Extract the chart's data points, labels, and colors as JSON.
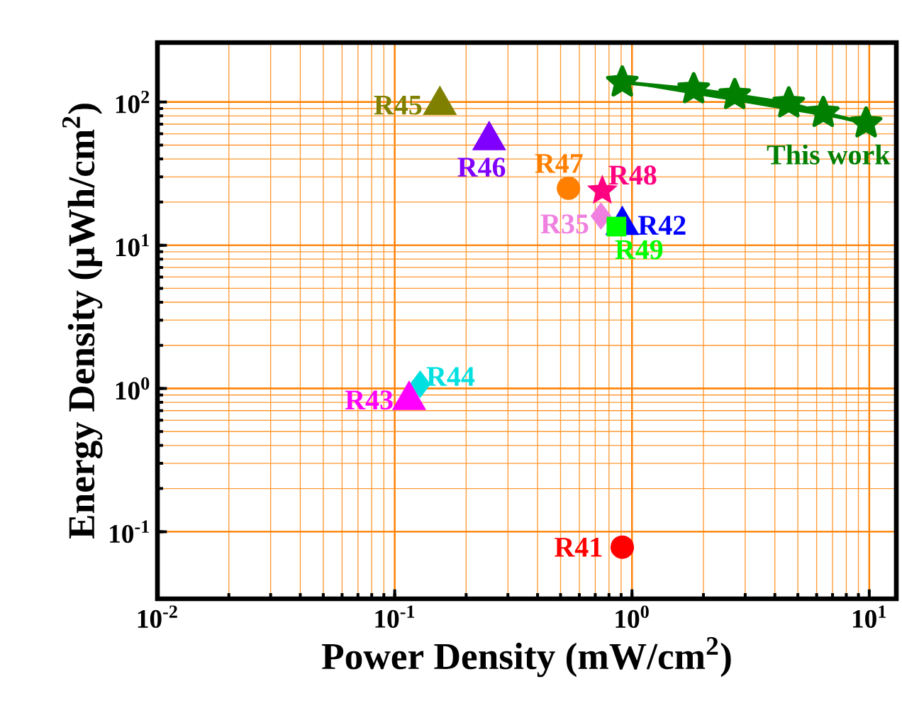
{
  "chart_data": {
    "type": "scatter",
    "xlabel": "Power Density (mW/cm$^{2}$)",
    "ylabel": "Energy Density (μWh/cm$^{2}$)",
    "log": "xy",
    "grid": true,
    "xlim": [
      0.01,
      13
    ],
    "ylim": [
      0.034,
      260
    ],
    "xticks": [
      {
        "value": 0.01,
        "label": "10$^{-2}$"
      },
      {
        "value": 0.1,
        "label": "10$^{-1}$"
      },
      {
        "value": 1,
        "label": "10$^{0}$"
      },
      {
        "value": 10,
        "label": "10$^{1}$"
      }
    ],
    "yticks": [
      {
        "value": 0.1,
        "label": "10$^{-1}$"
      },
      {
        "value": 1,
        "label": "10$^{0}$"
      },
      {
        "value": 10,
        "label": "10$^{1}$"
      },
      {
        "value": 100,
        "label": "10$^{2}$"
      }
    ],
    "series": [
      {
        "name": "This work",
        "type": "line",
        "marker": "star",
        "color": "#007f00",
        "x": [
          0.91,
          1.82,
          2.71,
          4.58,
          6.4,
          9.7
        ],
        "values": [
          137,
          123,
          112,
          98,
          84,
          71
        ]
      },
      {
        "name": "R45",
        "marker": "triangle",
        "color": "#808000",
        "x": [
          0.155
        ],
        "values": [
          95
        ]
      },
      {
        "name": "R46",
        "marker": "triangle",
        "color": "#8000ff",
        "x": [
          0.25
        ],
        "values": [
          54
        ]
      },
      {
        "name": "R47",
        "marker": "circle",
        "color": "#ff8000",
        "x": [
          0.54
        ],
        "values": [
          25
        ]
      },
      {
        "name": "R48",
        "marker": "star",
        "color": "#ff0080",
        "x": [
          0.75
        ],
        "values": [
          24
        ]
      },
      {
        "name": "R35",
        "marker": "diamond",
        "color": "#f080e0",
        "x": [
          0.74
        ],
        "values": [
          16
        ]
      },
      {
        "name": "R42",
        "marker": "triangle",
        "color": "#0000ff",
        "x": [
          0.91
        ],
        "values": [
          13.8
        ]
      },
      {
        "name": "R49",
        "marker": "square",
        "color": "#00ff00",
        "x": [
          0.86
        ],
        "values": [
          13.5
        ]
      },
      {
        "name": "R44",
        "marker": "diamond",
        "color": "#00e0e0",
        "x": [
          0.128
        ],
        "values": [
          1.07
        ]
      },
      {
        "name": "R43",
        "marker": "triangle",
        "color": "#ff00ff",
        "x": [
          0.115
        ],
        "values": [
          0.83
        ]
      },
      {
        "name": "R41",
        "marker": "circle",
        "color": "#ff0000",
        "x": [
          0.91
        ],
        "values": [
          0.078
        ]
      }
    ]
  }
}
